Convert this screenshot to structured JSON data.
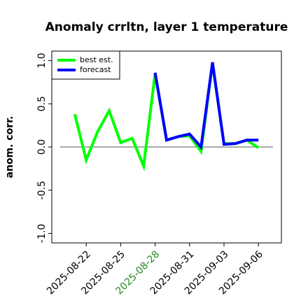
{
  "chart_data": {
    "type": "line",
    "title": "Anomaly crrltn, layer 1 temperature",
    "ylabel": "anom. corr.",
    "x": [
      "2025-08-21",
      "2025-08-22",
      "2025-08-23",
      "2025-08-24",
      "2025-08-25",
      "2025-08-26",
      "2025-08-27",
      "2025-08-28",
      "2025-08-29",
      "2025-08-30",
      "2025-08-31",
      "2025-09-01",
      "2025-09-02",
      "2025-09-03",
      "2025-09-04",
      "2025-09-05",
      "2025-09-06"
    ],
    "series": [
      {
        "name": "best est.",
        "color": "#00ff00",
        "values": [
          0.38,
          -0.15,
          0.18,
          0.42,
          0.05,
          0.1,
          -0.22,
          0.85,
          0.08,
          0.12,
          0.13,
          -0.05,
          0.97,
          0.04,
          0.04,
          0.08,
          -0.01
        ]
      },
      {
        "name": "forecast",
        "color": "#0000ff",
        "values": [
          null,
          null,
          null,
          null,
          null,
          null,
          null,
          0.86,
          0.08,
          0.12,
          0.15,
          0.0,
          0.98,
          0.03,
          0.04,
          0.08,
          0.08
        ]
      }
    ],
    "xlim": [
      "2025-08-19",
      "2025-09-08"
    ],
    "xticks": [
      "2025-08-22",
      "2025-08-25",
      "2025-08-28",
      "2025-08-31",
      "2025-09-03",
      "2025-09-06"
    ],
    "highlight_date": "2025-08-28",
    "highlight_color": "#228b22",
    "ylim": [
      -1.11,
      1.11
    ],
    "yticks": [
      {
        "value": -1.0,
        "label": "-1.0"
      },
      {
        "value": -0.5,
        "label": "-0.5"
      },
      {
        "value": 0,
        "label": "0.0"
      },
      {
        "value": 0.5,
        "label": "0.5"
      },
      {
        "value": 1.0,
        "label": "1.0"
      }
    ],
    "hline": 0,
    "legend": "upper left"
  }
}
